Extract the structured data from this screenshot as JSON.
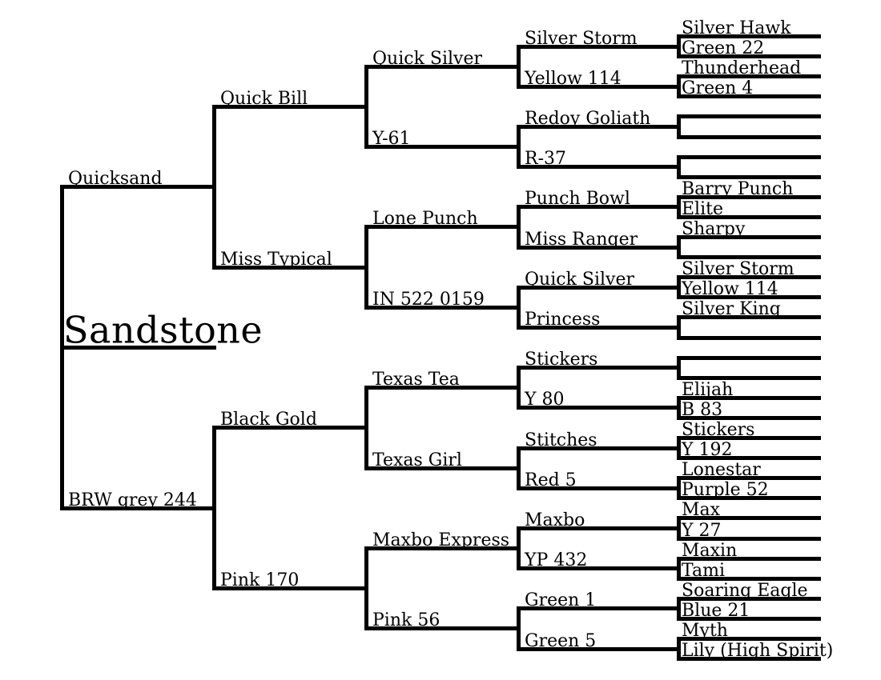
{
  "styles": {
    "background": "#ffffff",
    "line_color": "#000000",
    "text_color": "#000000"
  },
  "root": {
    "name": "Sandstone",
    "children": [
      {
        "name": "Quicksand",
        "children": [
          {
            "name": "Quick Bill",
            "children": [
              {
                "name": "Quick Silver",
                "children": [
                  {
                    "name": "Silver Storm",
                    "children": [
                      {
                        "name": "Silver Hawk"
                      },
                      {
                        "name": "Green 22"
                      }
                    ]
                  },
                  {
                    "name": "Yellow 114",
                    "children": [
                      {
                        "name": "Thunderhead"
                      },
                      {
                        "name": "Green 4"
                      }
                    ]
                  }
                ]
              },
              {
                "name": "Y-61",
                "children": [
                  {
                    "name": "Redoy Goliath",
                    "children": [
                      {
                        "name": ""
                      },
                      {
                        "name": ""
                      }
                    ]
                  },
                  {
                    "name": "R-37",
                    "children": [
                      {
                        "name": ""
                      },
                      {
                        "name": ""
                      }
                    ]
                  }
                ]
              }
            ]
          },
          {
            "name": "Miss Typical",
            "children": [
              {
                "name": "Lone Punch",
                "children": [
                  {
                    "name": "Punch Bowl",
                    "children": [
                      {
                        "name": "Barry Punch"
                      },
                      {
                        "name": "Elite"
                      }
                    ]
                  },
                  {
                    "name": "Miss Ranger",
                    "children": [
                      {
                        "name": "Sharpy"
                      },
                      {
                        "name": ""
                      }
                    ]
                  }
                ]
              },
              {
                "name": "IN 522 0159",
                "children": [
                  {
                    "name": "Quick Silver",
                    "children": [
                      {
                        "name": "Silver Storm"
                      },
                      {
                        "name": "Yellow 114"
                      }
                    ]
                  },
                  {
                    "name": "Princess",
                    "children": [
                      {
                        "name": "Silver King"
                      },
                      {
                        "name": ""
                      }
                    ]
                  }
                ]
              }
            ]
          }
        ]
      },
      {
        "name": "BRW grey 244",
        "children": [
          {
            "name": "Black Gold",
            "children": [
              {
                "name": "Texas Tea",
                "children": [
                  {
                    "name": "Stickers",
                    "children": [
                      {
                        "name": ""
                      },
                      {
                        "name": ""
                      }
                    ]
                  },
                  {
                    "name": "Y 80",
                    "children": [
                      {
                        "name": "Elijah"
                      },
                      {
                        "name": "B 83"
                      }
                    ]
                  }
                ]
              },
              {
                "name": "Texas Girl",
                "children": [
                  {
                    "name": "Stitches",
                    "children": [
                      {
                        "name": "Stickers"
                      },
                      {
                        "name": "Y 192"
                      }
                    ]
                  },
                  {
                    "name": "Red 5",
                    "children": [
                      {
                        "name": "Lonestar"
                      },
                      {
                        "name": "Purple 52"
                      }
                    ]
                  }
                ]
              }
            ]
          },
          {
            "name": "Pink 170",
            "children": [
              {
                "name": "Maxbo Express",
                "children": [
                  {
                    "name": "Maxbo",
                    "children": [
                      {
                        "name": "Max"
                      },
                      {
                        "name": "Y 27"
                      }
                    ]
                  },
                  {
                    "name": "YP 432",
                    "children": [
                      {
                        "name": "Maxin"
                      },
                      {
                        "name": "Tami"
                      }
                    ]
                  }
                ]
              },
              {
                "name": "Pink 56",
                "children": [
                  {
                    "name": "Green 1",
                    "children": [
                      {
                        "name": "Soaring Eagle"
                      },
                      {
                        "name": "Blue 21"
                      }
                    ]
                  },
                  {
                    "name": "Green 5",
                    "children": [
                      {
                        "name": "Myth"
                      },
                      {
                        "name": "Lily (High Spirit)"
                      }
                    ]
                  }
                ]
              }
            ]
          }
        ]
      }
    ]
  }
}
